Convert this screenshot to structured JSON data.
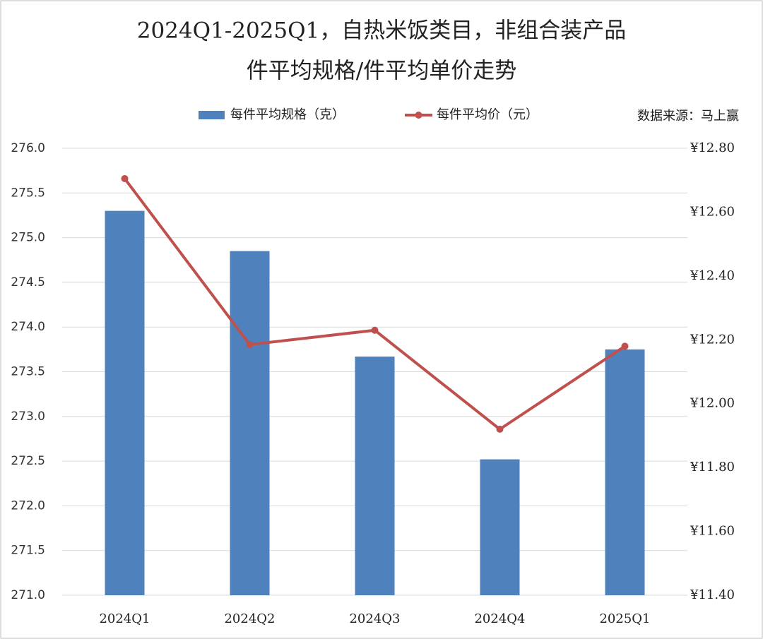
{
  "chart_data": {
    "type": "bar",
    "title": "2024Q1-2025Q1，自热米饭类目，非组合装产品",
    "subtitle": "件平均规格/件平均单价走势",
    "annotation": "数据来源：马上赢",
    "categories": [
      "2024Q1",
      "2024Q2",
      "2024Q3",
      "2024Q4",
      "2025Q1"
    ],
    "series": [
      {
        "name": "每件平均规格（克）",
        "type": "bar",
        "color": "#4f81bd",
        "values": [
          275.3,
          274.85,
          273.67,
          272.52,
          273.75
        ]
      },
      {
        "name": "每件平均价（元）",
        "type": "line",
        "axis": "y2",
        "color": "#c0504d",
        "values": [
          12.705,
          12.185,
          12.23,
          11.92,
          12.18
        ]
      }
    ],
    "ylim": [
      271.0,
      276.0
    ],
    "yticks": [
      {
        "value": 271,
        "label": "271.0"
      },
      {
        "value": 271.5,
        "label": "271.5"
      },
      {
        "value": 272,
        "label": "272.0"
      },
      {
        "value": 272.5,
        "label": "272.5"
      },
      {
        "value": 273,
        "label": "273.0"
      },
      {
        "value": 273.5,
        "label": "273.5"
      },
      {
        "value": 274,
        "label": "274.0"
      },
      {
        "value": 274.5,
        "label": "274.5"
      },
      {
        "value": 275,
        "label": "275.0"
      },
      {
        "value": 275.5,
        "label": "275.5"
      },
      {
        "value": 276,
        "label": "276.0"
      }
    ],
    "y2lim": [
      11.4,
      12.8
    ],
    "y2ticks": [
      {
        "value": 11.4,
        "label": "¥11.40"
      },
      {
        "value": 11.6,
        "label": "¥11.60"
      },
      {
        "value": 11.8,
        "label": "¥11.80"
      },
      {
        "value": 12.0,
        "label": "¥12.00"
      },
      {
        "value": 12.2,
        "label": "¥12.20"
      },
      {
        "value": 12.4,
        "label": "¥12.40"
      },
      {
        "value": 12.6,
        "label": "¥12.60"
      },
      {
        "value": 12.8,
        "label": "¥12.80"
      }
    ],
    "grid": true,
    "legend": "top"
  }
}
